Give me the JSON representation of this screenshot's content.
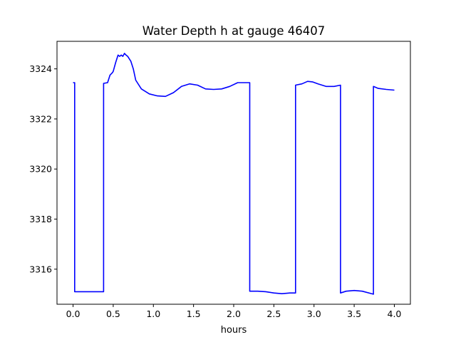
{
  "chart_data": {
    "type": "line",
    "title": "Water Depth h at gauge 46407",
    "xlabel": "hours",
    "ylabel": "",
    "xlim": [
      -0.2,
      4.2
    ],
    "ylim": [
      3314.6,
      3325.1
    ],
    "xticks": [
      0.0,
      0.5,
      1.0,
      1.5,
      2.0,
      2.5,
      3.0,
      3.5,
      4.0
    ],
    "xtick_labels": [
      "0.0",
      "0.5",
      "1.0",
      "1.5",
      "2.0",
      "2.5",
      "3.0",
      "3.5",
      "4.0"
    ],
    "yticks": [
      3316,
      3318,
      3320,
      3322,
      3324
    ],
    "ytick_labels": [
      "3316",
      "3318",
      "3320",
      "3322",
      "3324"
    ],
    "grid": false,
    "line_color": "#0000ff",
    "series": [
      {
        "name": "",
        "x": [
          0.0,
          0.02,
          0.02,
          0.2,
          0.38,
          0.38,
          0.43,
          0.46,
          0.49,
          0.5,
          0.53,
          0.56,
          0.58,
          0.6,
          0.62,
          0.64,
          0.66,
          0.68,
          0.72,
          0.75,
          0.78,
          0.85,
          0.95,
          1.05,
          1.15,
          1.25,
          1.35,
          1.45,
          1.55,
          1.65,
          1.75,
          1.85,
          1.95,
          2.05,
          2.1,
          2.2,
          2.2,
          2.3,
          2.4,
          2.5,
          2.6,
          2.7,
          2.77,
          2.77,
          2.85,
          2.92,
          2.98,
          3.05,
          3.15,
          3.25,
          3.33,
          3.33,
          3.4,
          3.5,
          3.6,
          3.74,
          3.74,
          3.8,
          3.9,
          4.0
        ],
        "y": [
          3323.45,
          3323.45,
          3315.1,
          3315.1,
          3315.1,
          3323.42,
          3323.45,
          3323.75,
          3323.85,
          3323.9,
          3324.25,
          3324.55,
          3324.5,
          3324.55,
          3324.5,
          3324.62,
          3324.55,
          3324.5,
          3324.3,
          3324.0,
          3323.55,
          3323.2,
          3323.0,
          3322.92,
          3322.9,
          3323.05,
          3323.3,
          3323.4,
          3323.35,
          3323.2,
          3323.18,
          3323.2,
          3323.3,
          3323.45,
          3323.45,
          3323.45,
          3315.12,
          3315.12,
          3315.1,
          3315.05,
          3315.02,
          3315.05,
          3315.05,
          3323.35,
          3323.4,
          3323.5,
          3323.48,
          3323.4,
          3323.3,
          3323.3,
          3323.35,
          3315.05,
          3315.12,
          3315.15,
          3315.12,
          3315.0,
          3323.3,
          3323.22,
          3323.18,
          3323.15
        ]
      }
    ]
  }
}
